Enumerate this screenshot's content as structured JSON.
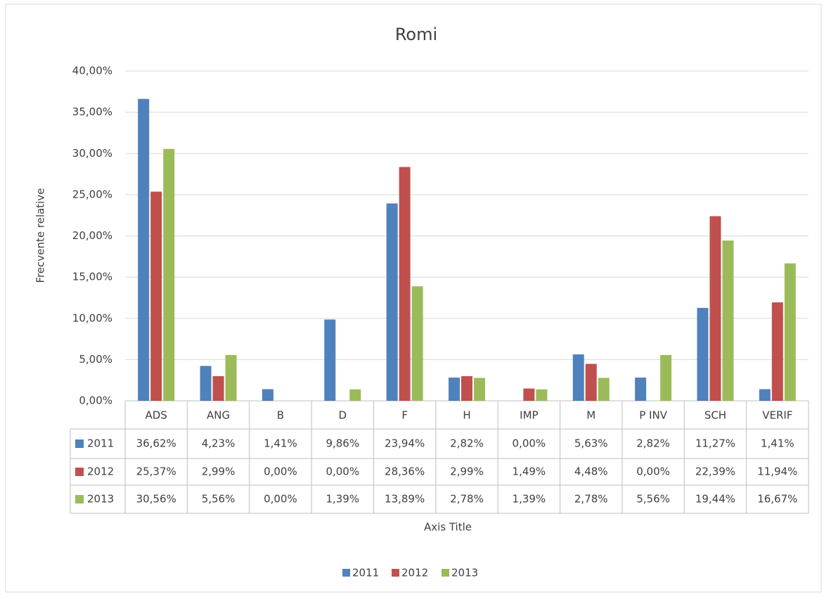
{
  "chart_data": {
    "type": "bar",
    "title": "Romi",
    "y_label": "Frecvente relative",
    "x_label": "Axis Title",
    "categories": [
      "ADS",
      "ANG",
      "B",
      "D",
      "F",
      "H",
      "IMP",
      "M",
      "P INV",
      "SCH",
      "VERIF"
    ],
    "series": [
      {
        "name": "2011",
        "color": "#4f81bd",
        "values": [
          36.62,
          4.23,
          1.41,
          9.86,
          23.94,
          2.82,
          0,
          5.63,
          2.82,
          11.27,
          1.41
        ],
        "value_labels": [
          "36,62%",
          "4,23%",
          "1,41%",
          "9,86%",
          "23,94%",
          "2,82%",
          "0,00%",
          "5,63%",
          "2,82%",
          "11,27%",
          "1,41%"
        ]
      },
      {
        "name": "2012",
        "color": "#c0504d",
        "values": [
          25.37,
          2.99,
          0,
          0,
          28.36,
          2.99,
          1.49,
          4.48,
          0,
          22.39,
          11.94
        ],
        "value_labels": [
          "25,37%",
          "2,99%",
          "0,00%",
          "0,00%",
          "28,36%",
          "2,99%",
          "1,49%",
          "4,48%",
          "0,00%",
          "22,39%",
          "11,94%"
        ]
      },
      {
        "name": "2013",
        "color": "#9bbb59",
        "values": [
          30.56,
          5.56,
          0,
          1.39,
          13.89,
          2.78,
          1.39,
          2.78,
          5.56,
          19.44,
          16.67
        ],
        "value_labels": [
          "30,56%",
          "5,56%",
          "0,00%",
          "1,39%",
          "13,89%",
          "2,78%",
          "1,39%",
          "2,78%",
          "5,56%",
          "19,44%",
          "16,67%"
        ]
      }
    ],
    "ylim": [
      0,
      40
    ],
    "yticks": [
      {
        "value": 0,
        "label": "0,00%"
      },
      {
        "value": 5,
        "label": "5,00%"
      },
      {
        "value": 10,
        "label": "10,00%"
      },
      {
        "value": 15,
        "label": "15,00%"
      },
      {
        "value": 20,
        "label": "20,00%"
      },
      {
        "value": 25,
        "label": "25,00%"
      },
      {
        "value": 30,
        "label": "30,00%"
      },
      {
        "value": 35,
        "label": "35,00%"
      },
      {
        "value": 40,
        "label": "40,00%"
      }
    ],
    "grid": true,
    "legend": "bottom"
  }
}
